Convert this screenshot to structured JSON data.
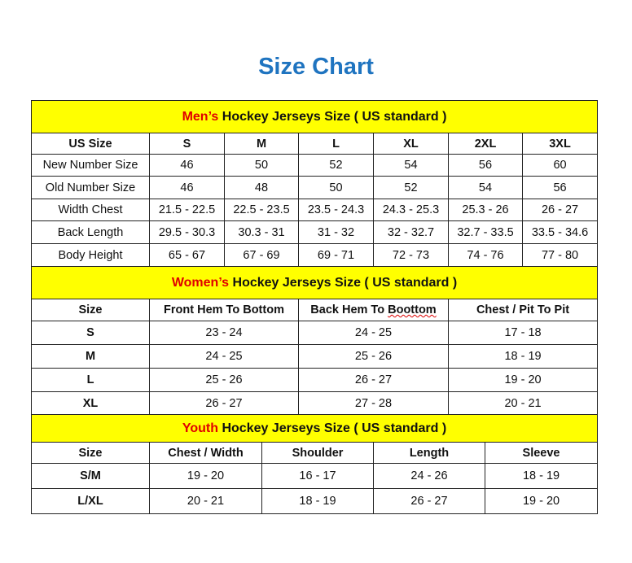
{
  "title": "Size Chart",
  "colors": {
    "title": "#1f74c0",
    "banner": "#ffff00",
    "accent_red": "#e00000"
  },
  "men": {
    "banner_red": "Men’s",
    "banner_rest": " Hockey Jerseys Size ( US standard )",
    "headers": [
      "US Size",
      "S",
      "M",
      "L",
      "XL",
      "2XL",
      "3XL"
    ],
    "rows": [
      [
        "New Number Size",
        "46",
        "50",
        "52",
        "54",
        "56",
        "60"
      ],
      [
        "Old Number Size",
        "46",
        "48",
        "50",
        "52",
        "54",
        "56"
      ],
      [
        "Width Chest",
        "21.5 - 22.5",
        "22.5 - 23.5",
        "23.5 - 24.3",
        "24.3 - 25.3",
        "25.3 - 26",
        "26 - 27"
      ],
      [
        "Back Length",
        "29.5 - 30.3",
        "30.3 - 31",
        "31 - 32",
        "32 - 32.7",
        "32.7 - 33.5",
        "33.5 - 34.6"
      ],
      [
        "Body Height",
        "65 - 67",
        "67 - 69",
        "69 - 71",
        "72 - 73",
        "74 - 76",
        "77 - 80"
      ]
    ]
  },
  "women": {
    "banner_red": "Women’s",
    "banner_rest": " Hockey Jerseys Size ( US standard )",
    "headers": [
      "Size",
      "Front Hem To Bottom",
      "Back Hem To Boottom",
      "Chest / Pit To Pit"
    ],
    "rows": [
      [
        "S",
        "23 - 24",
        "24 - 25",
        "17 - 18"
      ],
      [
        "M",
        "24 - 25",
        "25 - 26",
        "18 - 19"
      ],
      [
        "L",
        "25 - 26",
        "26 - 27",
        "19 - 20"
      ],
      [
        "XL",
        "26 - 27",
        "27 - 28",
        "20 - 21"
      ]
    ]
  },
  "youth": {
    "banner_red": "Youth",
    "banner_rest": " Hockey Jerseys Size ( US standard )",
    "headers": [
      "Size",
      "Chest / Width",
      "Shoulder",
      "Length",
      "Sleeve"
    ],
    "rows": [
      [
        "S/M",
        "19 - 20",
        "16 - 17",
        "24 - 26",
        "18 - 19"
      ],
      [
        "L/XL",
        "20 - 21",
        "18 - 19",
        "26 - 27",
        "19 - 20"
      ]
    ]
  }
}
